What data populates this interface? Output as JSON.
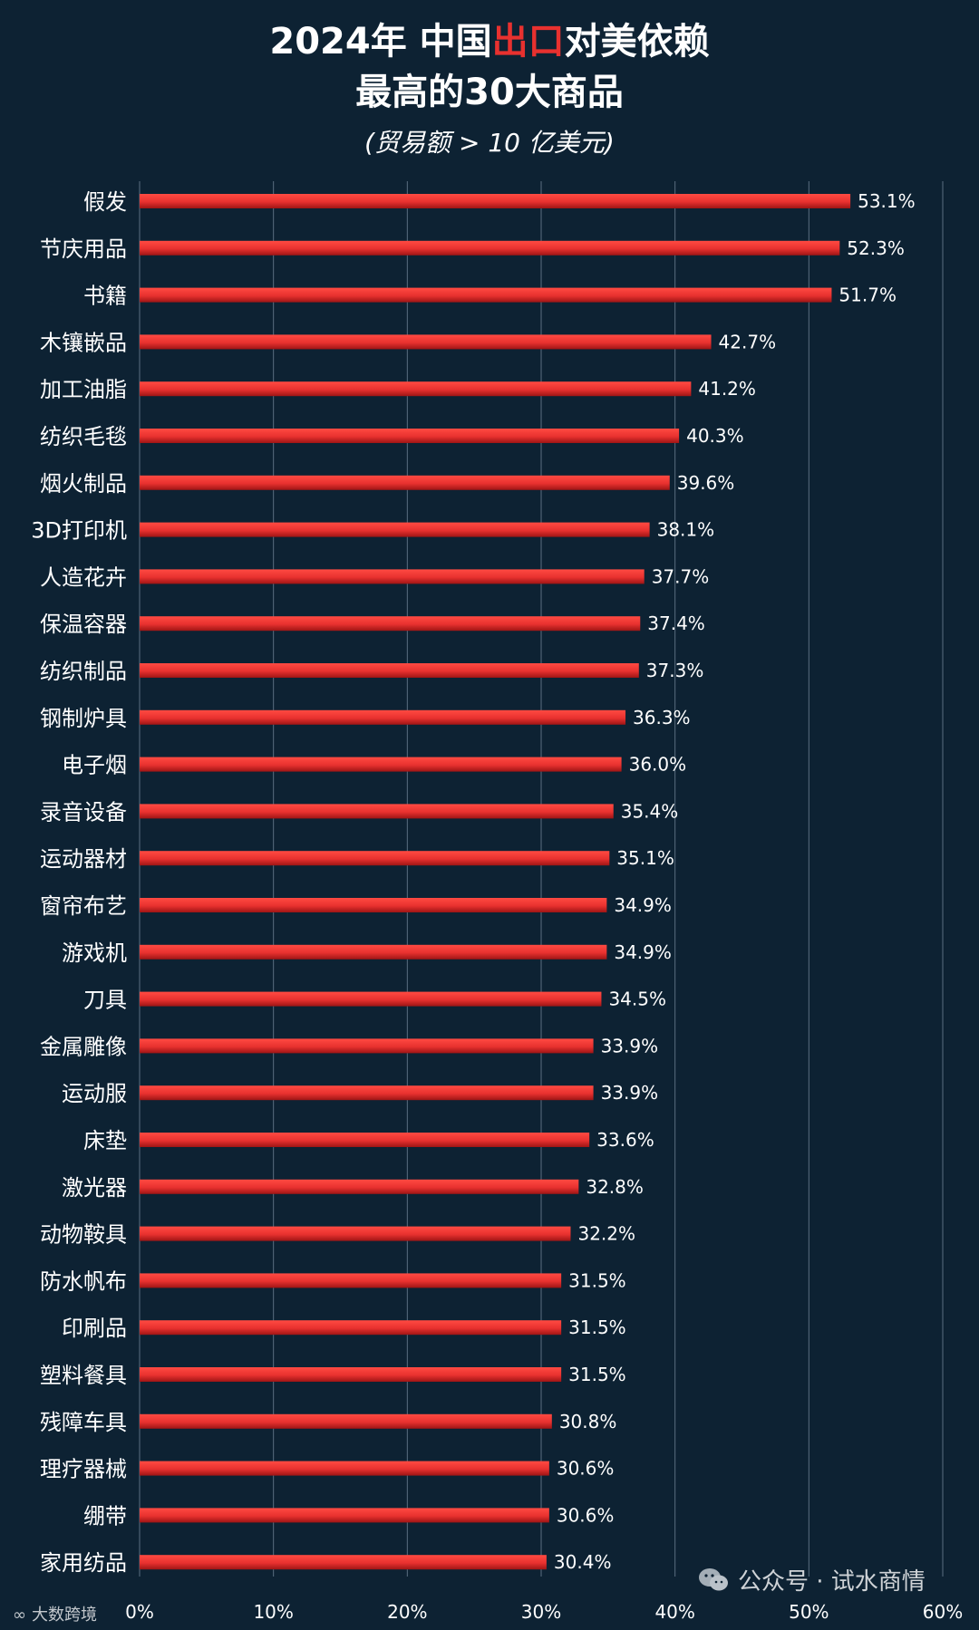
{
  "header": {
    "title_line1_pre": "2024年 中国",
    "title_line1_highlight": "出口",
    "title_line1_post": "对美依赖",
    "title_line2": "最高的30大商品",
    "subtitle": "(贸易额 > 10 亿美元)"
  },
  "watermarks": {
    "left_logo": "∞",
    "left_text": "大数跨境",
    "right_text": "公众号 · 试水商情"
  },
  "colors": {
    "background": "#0d2233",
    "bar": "#e8312f",
    "grid": "#5a6e80"
  },
  "chart_data": {
    "type": "bar",
    "orientation": "horizontal",
    "title": "2024年 中国出口对美依赖最高的30大商品",
    "subtitle": "(贸易额 > 10 亿美元)",
    "categories": [
      "假发",
      "节庆用品",
      "书籍",
      "木镶嵌品",
      "加工油脂",
      "纺织毛毯",
      "烟火制品",
      "3D打印机",
      "人造花卉",
      "保温容器",
      "纺织制品",
      "钢制炉具",
      "电子烟",
      "录音设备",
      "运动器材",
      "窗帘布艺",
      "游戏机",
      "刀具",
      "金属雕像",
      "运动服",
      "床垫",
      "激光器",
      "动物鞍具",
      "防水帆布",
      "印刷品",
      "塑料餐具",
      "残障车具",
      "理疗器械",
      "绷带",
      "家用纺品"
    ],
    "values": [
      53.1,
      52.3,
      51.7,
      42.7,
      41.2,
      40.3,
      39.6,
      38.1,
      37.7,
      37.4,
      37.3,
      36.3,
      36.0,
      35.4,
      35.1,
      34.9,
      34.9,
      34.5,
      33.9,
      33.9,
      33.6,
      32.8,
      32.2,
      31.5,
      31.5,
      31.5,
      30.8,
      30.6,
      30.6,
      30.4
    ],
    "value_labels": [
      "53.1%",
      "52.3%",
      "51.7%",
      "42.7%",
      "41.2%",
      "40.3%",
      "39.6%",
      "38.1%",
      "37.7%",
      "37.4%",
      "37.3%",
      "36.3%",
      "36.0%",
      "35.4%",
      "35.1%",
      "34.9%",
      "34.9%",
      "34.5%",
      "33.9%",
      "33.9%",
      "33.6%",
      "32.8%",
      "32.2%",
      "31.5%",
      "31.5%",
      "31.5%",
      "30.8%",
      "30.6%",
      "30.6%",
      "30.4%"
    ],
    "xlim": [
      0,
      60
    ],
    "xticks": [
      0,
      10,
      20,
      30,
      40,
      50,
      60
    ],
    "xtick_labels": [
      "0%",
      "10%",
      "20%",
      "30%",
      "40%",
      "50%",
      "60%"
    ],
    "xlabel": "",
    "ylabel": "",
    "grid": true,
    "legend": "none"
  }
}
